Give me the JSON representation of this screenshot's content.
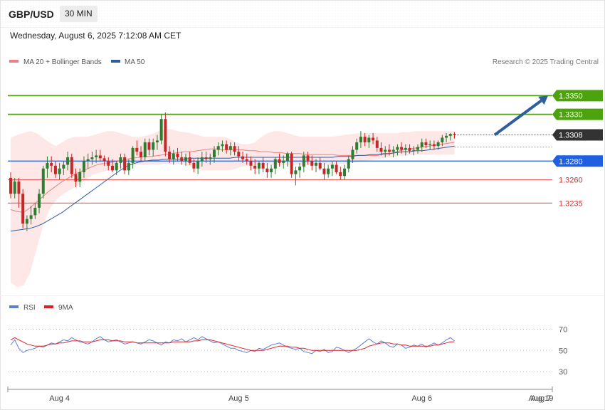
{
  "header": {
    "symbol": "GBP/USD",
    "timeframe": "30 MIN"
  },
  "datetime": "Wednesday, August 6, 2025 7:12:08 AM CET",
  "credit": "Research © 2025 Trading Central",
  "legend": {
    "main": [
      {
        "label": "MA 20 + Bollinger Bands",
        "color": "#f08080"
      },
      {
        "label": "MA 50",
        "color": "#2f5d9e"
      }
    ],
    "rsi": [
      {
        "label": "RSI",
        "color": "#5b7fd6"
      },
      {
        "label": "9MA",
        "color": "#e02020"
      }
    ]
  },
  "colors": {
    "up": "#2e7d32",
    "down": "#c62828",
    "band": "#fde3e3",
    "resistance": "#4ca30d",
    "support": "#e86060",
    "pivot": "#1f5fe0",
    "current": "#333333",
    "arrow": "#2f5d9e"
  },
  "chart_data": {
    "type": "candlestick",
    "price_axis": {
      "min": 1.314,
      "max": 1.338
    },
    "levels": [
      {
        "label": "1.3350",
        "value": 1.335,
        "role": "resistance"
      },
      {
        "label": "1.3330",
        "value": 1.333,
        "role": "resistance"
      },
      {
        "label": "1.3308",
        "value": 1.3308,
        "role": "current"
      },
      {
        "label": "1.3280",
        "value": 1.328,
        "role": "pivot"
      },
      {
        "label": "1.3260",
        "value": 1.326,
        "role": "support"
      },
      {
        "label": "1.3235",
        "value": 1.3235,
        "role": "support"
      }
    ],
    "arrow": {
      "from": 1.3308,
      "to": 1.335
    },
    "x_labels": [
      {
        "label": "Aug 4",
        "bar": 12
      },
      {
        "label": "Aug 5",
        "bar": 56
      },
      {
        "label": "Aug 6",
        "bar": 101
      },
      {
        "label": "Aug 7",
        "bar": 114
      },
      {
        "label": "Aug 19",
        "bar": 124
      }
    ],
    "candles": [
      [
        1.3262,
        1.3268,
        1.324,
        1.3245
      ],
      [
        1.3245,
        1.3262,
        1.324,
        1.3258
      ],
      [
        1.3258,
        1.3262,
        1.323,
        1.3245
      ],
      [
        1.3245,
        1.325,
        1.3208,
        1.3213
      ],
      [
        1.3213,
        1.3222,
        1.3205,
        1.3218
      ],
      [
        1.3218,
        1.3232,
        1.3212,
        1.3222
      ],
      [
        1.3222,
        1.3235,
        1.3218,
        1.323
      ],
      [
        1.323,
        1.325,
        1.3224,
        1.3245
      ],
      [
        1.3245,
        1.3275,
        1.324,
        1.3272
      ],
      [
        1.3272,
        1.3285,
        1.3262,
        1.3278
      ],
      [
        1.3278,
        1.3285,
        1.3268,
        1.3275
      ],
      [
        1.3275,
        1.328,
        1.3262,
        1.3266
      ],
      [
        1.3266,
        1.3278,
        1.326,
        1.3272
      ],
      [
        1.3272,
        1.328,
        1.3265,
        1.3276
      ],
      [
        1.3276,
        1.329,
        1.327,
        1.3284
      ],
      [
        1.3284,
        1.3288,
        1.3262,
        1.3266
      ],
      [
        1.3266,
        1.3272,
        1.3252,
        1.3258
      ],
      [
        1.3258,
        1.3272,
        1.3252,
        1.3268
      ],
      [
        1.3268,
        1.3285,
        1.3262,
        1.328
      ],
      [
        1.328,
        1.3288,
        1.3272,
        1.3282
      ],
      [
        1.3282,
        1.329,
        1.3276,
        1.3284
      ],
      [
        1.3284,
        1.3292,
        1.3278,
        1.3286
      ],
      [
        1.3286,
        1.3292,
        1.328,
        1.3283
      ],
      [
        1.3283,
        1.3286,
        1.3275,
        1.328
      ],
      [
        1.328,
        1.3284,
        1.327,
        1.3275
      ],
      [
        1.3275,
        1.3282,
        1.3268,
        1.327
      ],
      [
        1.327,
        1.328,
        1.3265,
        1.3278
      ],
      [
        1.3278,
        1.3288,
        1.3272,
        1.3284
      ],
      [
        1.3284,
        1.3288,
        1.3266,
        1.327
      ],
      [
        1.327,
        1.3282,
        1.3265,
        1.3278
      ],
      [
        1.3278,
        1.3296,
        1.3272,
        1.3294
      ],
      [
        1.3294,
        1.3302,
        1.3286,
        1.329
      ],
      [
        1.329,
        1.3296,
        1.328,
        1.3284
      ],
      [
        1.3284,
        1.3304,
        1.328,
        1.33
      ],
      [
        1.33,
        1.3304,
        1.3286,
        1.3292
      ],
      [
        1.3292,
        1.3304,
        1.3285,
        1.33
      ],
      [
        1.33,
        1.3308,
        1.3292,
        1.3302
      ],
      [
        1.3302,
        1.333,
        1.3298,
        1.3325
      ],
      [
        1.3325,
        1.3332,
        1.3285,
        1.329
      ],
      [
        1.329,
        1.3296,
        1.3278,
        1.3282
      ],
      [
        1.3282,
        1.3292,
        1.3276,
        1.3288
      ],
      [
        1.3288,
        1.3294,
        1.328,
        1.3284
      ],
      [
        1.3284,
        1.329,
        1.3276,
        1.328
      ],
      [
        1.328,
        1.3288,
        1.3275,
        1.3284
      ],
      [
        1.3284,
        1.329,
        1.3276,
        1.3278
      ],
      [
        1.3278,
        1.3282,
        1.3268,
        1.3272
      ],
      [
        1.3272,
        1.3284,
        1.3266,
        1.328
      ],
      [
        1.328,
        1.329,
        1.3274,
        1.3284
      ],
      [
        1.3284,
        1.329,
        1.3278,
        1.3282
      ],
      [
        1.3282,
        1.3288,
        1.3276,
        1.3284
      ],
      [
        1.3284,
        1.3296,
        1.3278,
        1.3292
      ],
      [
        1.3292,
        1.33,
        1.3286,
        1.3296
      ],
      [
        1.3296,
        1.3302,
        1.329,
        1.3298
      ],
      [
        1.3298,
        1.3302,
        1.3288,
        1.3292
      ],
      [
        1.3292,
        1.33,
        1.3286,
        1.3296
      ],
      [
        1.3296,
        1.33,
        1.3286,
        1.329
      ],
      [
        1.329,
        1.3296,
        1.328,
        1.3285
      ],
      [
        1.3285,
        1.329,
        1.3278,
        1.3282
      ],
      [
        1.3282,
        1.3288,
        1.3276,
        1.328
      ],
      [
        1.328,
        1.3285,
        1.327,
        1.3275
      ],
      [
        1.3275,
        1.3282,
        1.3266,
        1.3272
      ],
      [
        1.3272,
        1.328,
        1.3266,
        1.3278
      ],
      [
        1.3278,
        1.3284,
        1.3268,
        1.3272
      ],
      [
        1.3272,
        1.3278,
        1.3262,
        1.3268
      ],
      [
        1.3268,
        1.3276,
        1.3262,
        1.3272
      ],
      [
        1.3272,
        1.3284,
        1.3266,
        1.3282
      ],
      [
        1.3282,
        1.3288,
        1.3274,
        1.3278
      ],
      [
        1.3278,
        1.3286,
        1.3272,
        1.328
      ],
      [
        1.328,
        1.329,
        1.3274,
        1.3288
      ],
      [
        1.3288,
        1.329,
        1.3262,
        1.3266
      ],
      [
        1.3266,
        1.3274,
        1.3254,
        1.327
      ],
      [
        1.327,
        1.3278,
        1.3262,
        1.3274
      ],
      [
        1.3274,
        1.329,
        1.3268,
        1.3286
      ],
      [
        1.3286,
        1.329,
        1.3276,
        1.328
      ],
      [
        1.328,
        1.3286,
        1.327,
        1.3275
      ],
      [
        1.3275,
        1.3282,
        1.3268,
        1.3278
      ],
      [
        1.3278,
        1.3284,
        1.327,
        1.3272
      ],
      [
        1.3272,
        1.3278,
        1.326,
        1.3266
      ],
      [
        1.3266,
        1.3276,
        1.3262,
        1.3272
      ],
      [
        1.3272,
        1.328,
        1.3264,
        1.3276
      ],
      [
        1.3276,
        1.328,
        1.3266,
        1.3268
      ],
      [
        1.3268,
        1.3274,
        1.326,
        1.3264
      ],
      [
        1.3264,
        1.3276,
        1.326,
        1.3272
      ],
      [
        1.3272,
        1.3286,
        1.3268,
        1.3282
      ],
      [
        1.3282,
        1.3296,
        1.3278,
        1.3292
      ],
      [
        1.3292,
        1.3304,
        1.3288,
        1.33
      ],
      [
        1.33,
        1.3312,
        1.3294,
        1.3306
      ],
      [
        1.3306,
        1.331,
        1.3296,
        1.33
      ],
      [
        1.33,
        1.3308,
        1.3294,
        1.3305
      ],
      [
        1.3305,
        1.331,
        1.3298,
        1.3302
      ],
      [
        1.3302,
        1.3306,
        1.329,
        1.3294
      ],
      [
        1.3294,
        1.33,
        1.3286,
        1.329
      ],
      [
        1.329,
        1.3296,
        1.3284,
        1.3292
      ],
      [
        1.3292,
        1.3298,
        1.3286,
        1.329
      ],
      [
        1.329,
        1.3296,
        1.3284,
        1.3292
      ],
      [
        1.3292,
        1.3298,
        1.3286,
        1.3295
      ],
      [
        1.3295,
        1.33,
        1.3288,
        1.3292
      ],
      [
        1.3292,
        1.3298,
        1.3286,
        1.3294
      ],
      [
        1.3294,
        1.3298,
        1.3288,
        1.3291
      ],
      [
        1.3291,
        1.3296,
        1.3286,
        1.3292
      ],
      [
        1.3292,
        1.3298,
        1.3288,
        1.3295
      ],
      [
        1.3295,
        1.3304,
        1.329,
        1.33
      ],
      [
        1.33,
        1.3304,
        1.3294,
        1.3297
      ],
      [
        1.3297,
        1.3302,
        1.3292,
        1.3298
      ],
      [
        1.3298,
        1.3302,
        1.3292,
        1.3296
      ],
      [
        1.3296,
        1.3302,
        1.3292,
        1.33
      ],
      [
        1.33,
        1.3308,
        1.3296,
        1.3305
      ],
      [
        1.3305,
        1.331,
        1.33,
        1.3307
      ],
      [
        1.3307,
        1.331,
        1.3302,
        1.3309
      ],
      [
        1.3309,
        1.3311,
        1.3304,
        1.3308
      ]
    ],
    "ma20": [
      1.3228,
      1.3226,
      1.3225,
      1.323,
      1.3236,
      1.3242,
      1.3248,
      1.3253,
      1.3258,
      1.3262,
      1.3266,
      1.3269,
      1.3272,
      1.3275,
      1.3277,
      1.3278,
      1.3279,
      1.328,
      1.3282,
      1.3283,
      1.3284,
      1.3285,
      1.3285,
      1.3286,
      1.3287,
      1.3288,
      1.3289,
      1.329,
      1.329,
      1.3291,
      1.3292,
      1.3293,
      1.3293,
      1.3292,
      1.3292,
      1.3292,
      1.3292,
      1.3291,
      1.3291,
      1.329,
      1.329,
      1.3289,
      1.3289,
      1.3288,
      1.3288,
      1.3288,
      1.3287,
      1.3287,
      1.3287,
      1.3287,
      1.3287,
      1.3286,
      1.3286,
      1.3286,
      1.3286,
      1.3286,
      1.3286,
      1.3286,
      1.3287,
      1.3288,
      1.329,
      1.3292,
      1.3293,
      1.3294,
      1.3295,
      1.3296,
      1.3297,
      1.3298,
      1.3299,
      1.33
    ],
    "ma50": [
      1.3205,
      1.3206,
      1.3207,
      1.3208,
      1.321,
      1.3213,
      1.3217,
      1.3221,
      1.3225,
      1.323,
      1.3235,
      1.324,
      1.3245,
      1.325,
      1.3255,
      1.326,
      1.3265,
      1.327,
      1.3274,
      1.3277,
      1.3279,
      1.328,
      1.3281,
      1.3281,
      1.3282,
      1.3282,
      1.3282,
      1.3282,
      1.3283,
      1.3283,
      1.3283,
      1.3283,
      1.3283,
      1.3283,
      1.3283,
      1.3284,
      1.3284,
      1.3284,
      1.3284,
      1.3284,
      1.3284,
      1.3284,
      1.3284,
      1.3284,
      1.3284,
      1.3284,
      1.3284,
      1.3284,
      1.3284,
      1.3284,
      1.3284,
      1.3285,
      1.3285,
      1.3285,
      1.3286,
      1.3286,
      1.3287,
      1.3287,
      1.3288,
      1.3288,
      1.3289,
      1.329,
      1.329,
      1.3291,
      1.3291,
      1.3292,
      1.3293,
      1.3294,
      1.3295,
      1.3296
    ],
    "bb_upper": [
      1.3305,
      1.3308,
      1.331,
      1.3312,
      1.331,
      1.3305,
      1.33,
      1.3296,
      1.33,
      1.3304,
      1.3306,
      1.3306,
      1.3306,
      1.3308,
      1.331,
      1.3312,
      1.3312,
      1.331,
      1.3308,
      1.3306,
      1.3306,
      1.3307,
      1.3309,
      1.3312,
      1.3314,
      1.3314,
      1.3312,
      1.3311,
      1.331,
      1.3308,
      1.3306,
      1.3306,
      1.3306,
      1.3306,
      1.3304,
      1.33,
      1.3298,
      1.3298,
      1.33,
      1.3306,
      1.331,
      1.3312,
      1.3312,
      1.331,
      1.3308,
      1.3306,
      1.3306,
      1.3306,
      1.3306,
      1.3306,
      1.3306,
      1.3307,
      1.3308,
      1.3309,
      1.331,
      1.331,
      1.331,
      1.331,
      1.331,
      1.331,
      1.331,
      1.3311,
      1.3311,
      1.3312,
      1.3312,
      1.3312,
      1.3312,
      1.3312,
      1.3312,
      1.3312
    ],
    "bb_lower": [
      1.315,
      1.3145,
      1.3147,
      1.316,
      1.3185,
      1.321,
      1.3228,
      1.3238,
      1.3244,
      1.3248,
      1.3252,
      1.3256,
      1.3262,
      1.3266,
      1.3268,
      1.327,
      1.327,
      1.3272,
      1.3274,
      1.3276,
      1.3276,
      1.3276,
      1.3276,
      1.3276,
      1.3277,
      1.3277,
      1.3277,
      1.3276,
      1.3274,
      1.3272,
      1.327,
      1.327,
      1.327,
      1.327,
      1.327,
      1.3272,
      1.3274,
      1.3275,
      1.3276,
      1.3276,
      1.3276,
      1.3276,
      1.3276,
      1.3276,
      1.3276,
      1.3276,
      1.3276,
      1.3276,
      1.3276,
      1.3276,
      1.3276,
      1.3277,
      1.3277,
      1.3278,
      1.3279,
      1.328,
      1.3281,
      1.3282,
      1.3283,
      1.3284,
      1.3285,
      1.3286,
      1.3286,
      1.3287,
      1.3287,
      1.3287,
      1.3287,
      1.3287,
      1.3287,
      1.3287
    ],
    "rsi_axis": {
      "min": 20,
      "max": 75,
      "ticks": [
        70,
        50,
        30
      ]
    },
    "rsi": [
      55,
      60,
      52,
      48,
      50,
      51,
      52,
      54,
      53,
      55,
      57,
      56,
      58,
      60,
      59,
      62,
      60,
      58,
      57,
      56,
      58,
      61,
      63,
      60,
      58,
      59,
      60,
      58,
      56,
      57,
      58,
      57,
      56,
      58,
      60,
      59,
      57,
      55,
      58,
      57,
      60,
      59,
      61,
      58,
      60,
      62,
      60,
      63,
      61,
      59,
      57,
      58,
      56,
      54,
      52,
      52,
      50,
      49,
      48,
      50,
      49,
      52,
      51,
      53,
      55,
      56,
      57,
      55,
      53,
      52,
      51,
      52,
      49,
      48,
      47,
      50,
      49,
      51,
      48,
      49,
      53,
      52,
      50,
      48,
      50,
      52,
      55,
      58,
      61,
      58,
      56,
      59,
      57,
      54,
      53,
      56,
      55,
      52,
      53,
      55,
      54,
      56,
      53,
      55,
      57,
      55,
      57,
      60,
      62,
      59
    ],
    "rsi_ma": [
      60,
      62,
      60,
      58,
      56,
      55,
      54,
      54,
      54,
      55,
      56,
      56,
      57,
      57,
      58,
      59,
      59,
      59,
      58,
      58,
      58,
      59,
      60,
      60,
      60,
      59,
      59,
      59,
      58,
      58,
      58,
      57,
      57,
      57,
      57,
      57,
      57,
      57,
      57,
      57,
      58,
      58,
      58,
      58,
      58,
      59,
      59,
      60,
      60,
      60,
      59,
      58,
      57,
      56,
      55,
      54,
      53,
      52,
      51,
      50,
      50,
      50,
      50,
      51,
      52,
      53,
      54,
      54,
      54,
      53,
      53,
      52,
      52,
      51,
      50,
      50,
      50,
      50,
      50,
      50,
      50,
      50,
      50,
      50,
      50,
      50,
      51,
      52,
      54,
      55,
      56,
      57,
      57,
      57,
      56,
      56,
      55,
      55,
      54,
      54,
      54,
      54,
      54,
      54,
      55,
      55,
      56,
      57,
      58,
      58
    ]
  }
}
